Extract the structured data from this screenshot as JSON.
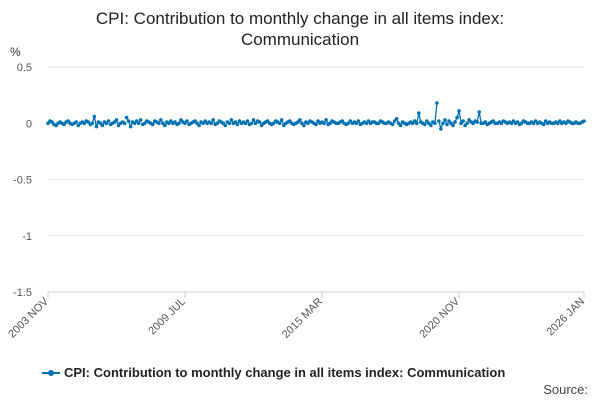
{
  "colors": {
    "series": "#0072b2",
    "grid": "#e6e6e6",
    "axis": "#cccccc",
    "text": "#555555"
  },
  "footer": {
    "source_label": "Source:"
  },
  "chart_data": {
    "type": "line",
    "title_line1": "CPI: Contribution to monthly change in all items index:",
    "title_line2": "Communication",
    "ylabel": "%",
    "xlabel": "",
    "ylim": [
      -1.5,
      0.5
    ],
    "yticks": [
      0.5,
      0,
      -0.5,
      -1,
      -1.5
    ],
    "ytick_labels": [
      "0.5",
      "0",
      "-0.5",
      "-1",
      "-1.5"
    ],
    "xlim": [
      "2003-11",
      "2026-01"
    ],
    "xticks": [
      {
        "date": "2003-11",
        "label": "2003 NOV"
      },
      {
        "date": "2009-07",
        "label": "2009 JUL"
      },
      {
        "date": "2015-03",
        "label": "2015 MAR"
      },
      {
        "date": "2020-11",
        "label": "2020 NOV"
      },
      {
        "date": "2026-01",
        "label": "2026 JAN"
      }
    ],
    "grid": true,
    "legend_position": "bottom",
    "series": [
      {
        "name": "CPI: Contribution to monthly change in all items index: Communication",
        "color": "#0072b2",
        "start": "2003-11",
        "values": [
          0.0,
          0.02,
          0.01,
          -0.01,
          -0.02,
          0.0,
          0.01,
          0.0,
          -0.01,
          0.01,
          0.02,
          0.0,
          -0.01,
          0.0,
          0.01,
          -0.02,
          0.0,
          0.01,
          0.0,
          0.02,
          0.01,
          -0.01,
          0.0,
          0.06,
          -0.03,
          0.01,
          0.0,
          -0.02,
          0.01,
          0.0,
          0.02,
          -0.01,
          0.0,
          0.01,
          0.03,
          -0.02,
          0.0,
          0.01,
          0.0,
          0.05,
          0.02,
          -0.03,
          0.01,
          0.0,
          0.02,
          0.0,
          0.03,
          -0.01,
          0.0,
          0.02,
          0.01,
          0.0,
          -0.01,
          0.02,
          0.01,
          0.0,
          0.03,
          0.0,
          -0.02,
          0.01,
          0.0,
          0.02,
          0.0,
          0.01,
          -0.01,
          0.0,
          0.03,
          0.01,
          0.0,
          0.02,
          -0.01,
          0.0,
          0.01,
          0.02,
          0.0,
          -0.02,
          0.01,
          0.0,
          0.02,
          0.0,
          0.01,
          0.0,
          0.03,
          -0.01,
          0.0,
          0.02,
          0.01,
          0.0,
          -0.02,
          0.01,
          0.0,
          0.03,
          0.0,
          0.01,
          -0.01,
          0.02,
          0.0,
          0.01,
          0.0,
          0.02,
          -0.01,
          0.0,
          0.03,
          0.0,
          0.02,
          0.01,
          -0.02,
          0.0,
          0.01,
          0.02,
          0.0,
          -0.01,
          0.0,
          0.02,
          0.01,
          0.0,
          0.03,
          -0.02,
          0.0,
          0.01,
          0.02,
          0.0,
          -0.01,
          0.0,
          0.01,
          0.03,
          0.0,
          -0.02,
          0.01,
          0.0,
          0.02,
          0.01,
          0.0,
          -0.01,
          0.02,
          0.0,
          0.01,
          0.0,
          0.03,
          -0.01,
          0.0,
          0.02,
          0.01,
          0.0,
          0.0,
          0.01,
          0.02,
          0.0,
          -0.01,
          0.0,
          0.02,
          0.0,
          0.01,
          0.0,
          0.02,
          -0.01,
          0.0,
          0.01,
          0.0,
          0.02,
          0.0,
          0.01,
          0.01,
          0.0,
          0.0,
          0.02,
          0.01,
          0.0,
          0.0,
          0.01,
          0.0,
          -0.01,
          0.02,
          0.04,
          0.0,
          -0.02,
          0.01,
          0.0,
          -0.01,
          0.0,
          0.01,
          0.0,
          0.02,
          0.0,
          0.09,
          0.01,
          0.0,
          -0.01,
          0.02,
          0.0,
          -0.02,
          0.01,
          0.0,
          0.18,
          0.02,
          -0.05,
          0.0,
          0.03,
          -0.01,
          0.02,
          0.0,
          -0.02,
          0.01,
          0.05,
          0.11,
          0.0,
          0.02,
          -0.02,
          0.0,
          0.03,
          0.01,
          0.0,
          0.02,
          0.01,
          0.1,
          0.0,
          0.0,
          0.01,
          -0.01,
          0.0,
          0.01,
          0.02,
          0.0,
          0.0,
          0.01,
          0.0,
          0.02,
          0.01,
          0.0,
          0.01,
          0.0,
          0.02,
          0.0,
          0.01,
          -0.01,
          0.0,
          0.02,
          0.01,
          0.0,
          0.0,
          0.01,
          0.0,
          0.02,
          0.0,
          0.01,
          0.0,
          -0.01,
          0.02,
          0.0,
          0.01,
          0.0,
          0.0,
          0.01,
          0.0,
          0.02,
          0.0,
          0.01,
          0.0,
          0.02,
          0.01,
          0.0,
          0.0,
          0.01,
          0.0,
          0.0,
          0.01,
          0.02
        ],
        "gaps": [
          [
            7,
            8
          ],
          [
            14,
            15
          ],
          [
            30,
            31
          ],
          [
            38,
            39
          ],
          [
            46,
            47
          ],
          [
            60,
            61
          ],
          [
            66,
            67
          ],
          [
            88,
            89
          ],
          [
            96,
            97
          ],
          [
            110,
            111
          ],
          [
            124,
            125
          ],
          [
            132,
            133
          ],
          [
            140,
            141
          ],
          [
            146,
            147
          ],
          [
            152,
            153
          ],
          [
            160,
            161
          ],
          [
            166,
            167
          ],
          [
            172,
            173
          ],
          [
            180,
            181
          ],
          [
            186,
            187
          ],
          [
            193,
            194
          ],
          [
            198,
            199
          ],
          [
            206,
            207
          ],
          [
            215,
            216
          ],
          [
            222,
            223
          ],
          [
            232,
            233
          ],
          [
            240,
            241
          ],
          [
            248,
            249
          ],
          [
            256,
            257
          ],
          [
            262,
            263
          ]
        ]
      }
    ]
  }
}
